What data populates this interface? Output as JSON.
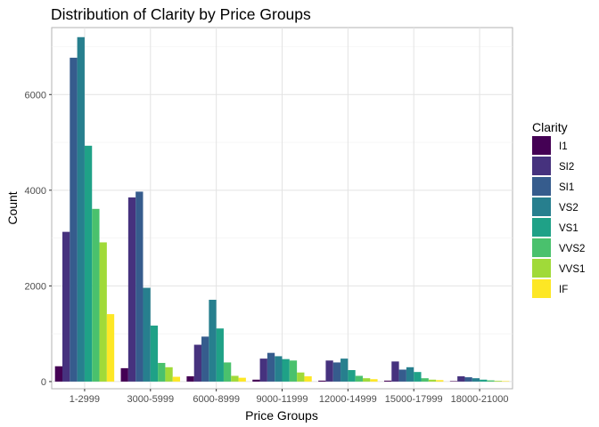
{
  "chart_data": {
    "type": "bar",
    "title": "Distribution of Clarity by Price Groups",
    "xlabel": "Price Groups",
    "ylabel": "Count",
    "ylim": [
      -150,
      7400
    ],
    "yticks": [
      0,
      2000,
      4000,
      6000
    ],
    "grid": true,
    "legend": {
      "title": "Clarity",
      "placement": "right"
    },
    "categories": [
      "1-2999",
      "3000-5999",
      "6000-8999",
      "9000-11999",
      "12000-14999",
      "15000-17999",
      "18000-21000"
    ],
    "series": [
      {
        "name": "I1",
        "color": "#440154",
        "values": [
          320,
          280,
          110,
          40,
          20,
          20,
          10
        ]
      },
      {
        "name": "SI2",
        "color": "#46327E",
        "values": [
          3130,
          3850,
          770,
          480,
          440,
          420,
          110
        ]
      },
      {
        "name": "SI1",
        "color": "#365C8D",
        "values": [
          6770,
          3970,
          940,
          600,
          400,
          250,
          90
        ]
      },
      {
        "name": "VS2",
        "color": "#277F8E",
        "values": [
          7200,
          1960,
          1710,
          530,
          480,
          300,
          70
        ]
      },
      {
        "name": "VS1",
        "color": "#1FA187",
        "values": [
          4930,
          1170,
          1110,
          470,
          240,
          200,
          40
        ]
      },
      {
        "name": "VVS2",
        "color": "#4AC16D",
        "values": [
          3610,
          390,
          400,
          440,
          120,
          70,
          25
        ]
      },
      {
        "name": "VVS1",
        "color": "#A0DA39",
        "values": [
          2910,
          300,
          120,
          190,
          70,
          40,
          15
        ]
      },
      {
        "name": "IF",
        "color": "#FDE725",
        "values": [
          1410,
          100,
          80,
          110,
          50,
          30,
          10
        ]
      }
    ]
  }
}
